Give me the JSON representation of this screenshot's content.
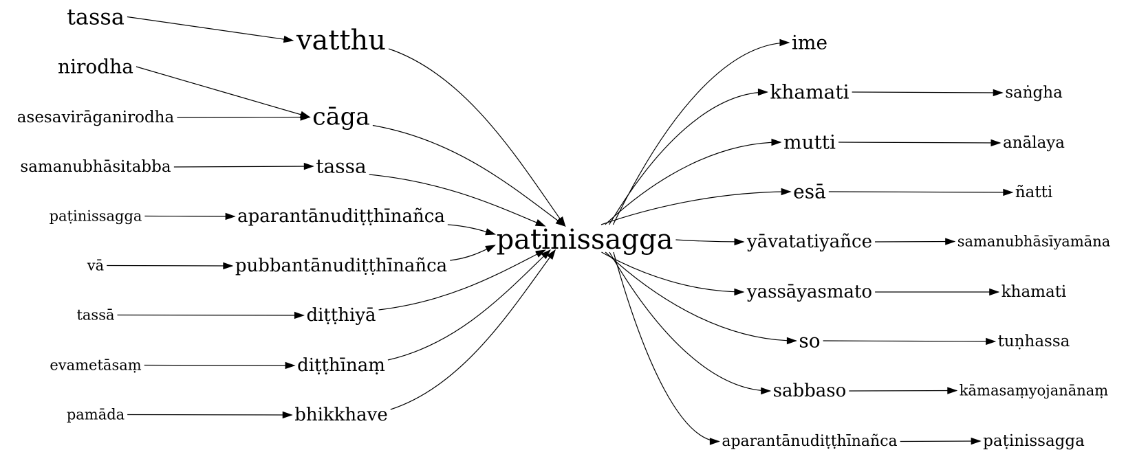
{
  "graph": {
    "center": {
      "id": "center",
      "label": "paṭinissagga"
    },
    "left_nodes": [
      {
        "id": "l-tassa",
        "label": "tassa"
      },
      {
        "id": "l-vatthu",
        "label": "vatthu"
      },
      {
        "id": "l-nirodha",
        "label": "nirodha"
      },
      {
        "id": "l-asesaviraganirodha",
        "label": "asesavirāganirodha"
      },
      {
        "id": "l-caga",
        "label": "cāga"
      },
      {
        "id": "l-samanubhasitabba",
        "label": "samanubhāsitabba"
      },
      {
        "id": "l-tassa2",
        "label": "tassa"
      },
      {
        "id": "l-patinissagga",
        "label": "paṭinissagga"
      },
      {
        "id": "l-aparanta",
        "label": "aparantānudiṭṭhīnañca"
      },
      {
        "id": "l-va",
        "label": "vā"
      },
      {
        "id": "l-pubbanta",
        "label": "pubbantānudiṭṭhīnañca"
      },
      {
        "id": "l-tassa3",
        "label": "tassā"
      },
      {
        "id": "l-ditthiya",
        "label": "diṭṭhiyā"
      },
      {
        "id": "l-evametasam",
        "label": "evametāsaṃ"
      },
      {
        "id": "l-ditthinam",
        "label": "diṭṭhīnaṃ"
      },
      {
        "id": "l-pamada",
        "label": "pamāda"
      },
      {
        "id": "l-bhikkhave",
        "label": "bhikkhave"
      }
    ],
    "right_nodes": [
      {
        "id": "r-ime",
        "label": "ime"
      },
      {
        "id": "r-khamati",
        "label": "khamati"
      },
      {
        "id": "r-sangha",
        "label": "saṅgha"
      },
      {
        "id": "r-mutti",
        "label": "mutti"
      },
      {
        "id": "r-analaya",
        "label": "anālaya"
      },
      {
        "id": "r-esa",
        "label": "esā"
      },
      {
        "id": "r-natti",
        "label": "ñatti"
      },
      {
        "id": "r-yavatatiyance",
        "label": "yāvatatiyañce"
      },
      {
        "id": "r-samanubhasiyamana",
        "label": "samanubhāsīyamāna"
      },
      {
        "id": "r-yassayasmato",
        "label": "yassāyasmato"
      },
      {
        "id": "r-khamati2",
        "label": "khamati"
      },
      {
        "id": "r-so",
        "label": "so"
      },
      {
        "id": "r-tunhassa",
        "label": "tuṇhassa"
      },
      {
        "id": "r-sabbaso",
        "label": "sabbaso"
      },
      {
        "id": "r-kamasamyojananam",
        "label": "kāmasaṃyojanānaṃ"
      },
      {
        "id": "r-aparanta",
        "label": "aparantānudiṭṭhīnañca"
      },
      {
        "id": "r-patinissagga",
        "label": "paṭinissagga"
      }
    ],
    "edges": [
      [
        "l-tassa",
        "l-vatthu"
      ],
      [
        "l-nirodha",
        "l-caga"
      ],
      [
        "l-asesaviraganirodha",
        "l-caga"
      ],
      [
        "l-samanubhasitabba",
        "l-tassa2"
      ],
      [
        "l-patinissagga",
        "l-aparanta"
      ],
      [
        "l-va",
        "l-pubbanta"
      ],
      [
        "l-tassa3",
        "l-ditthiya"
      ],
      [
        "l-evametasam",
        "l-ditthinam"
      ],
      [
        "l-pamada",
        "l-bhikkhave"
      ],
      [
        "l-vatthu",
        "center"
      ],
      [
        "l-caga",
        "center"
      ],
      [
        "l-tassa2",
        "center"
      ],
      [
        "l-aparanta",
        "center"
      ],
      [
        "l-pubbanta",
        "center"
      ],
      [
        "l-ditthiya",
        "center"
      ],
      [
        "l-ditthinam",
        "center"
      ],
      [
        "l-bhikkhave",
        "center"
      ],
      [
        "center",
        "r-ime"
      ],
      [
        "center",
        "r-khamati"
      ],
      [
        "center",
        "r-mutti"
      ],
      [
        "center",
        "r-esa"
      ],
      [
        "center",
        "r-yavatatiyance"
      ],
      [
        "center",
        "r-yassayasmato"
      ],
      [
        "center",
        "r-so"
      ],
      [
        "center",
        "r-sabbaso"
      ],
      [
        "center",
        "r-aparanta"
      ],
      [
        "r-khamati",
        "r-sangha"
      ],
      [
        "r-mutti",
        "r-analaya"
      ],
      [
        "r-esa",
        "r-natti"
      ],
      [
        "r-yavatatiyance",
        "r-samanubhasiyamana"
      ],
      [
        "r-yassayasmato",
        "r-khamati2"
      ],
      [
        "r-so",
        "r-tunhassa"
      ],
      [
        "r-sabbaso",
        "r-kamasamyojananam"
      ],
      [
        "r-aparanta",
        "r-patinissagga"
      ]
    ]
  }
}
